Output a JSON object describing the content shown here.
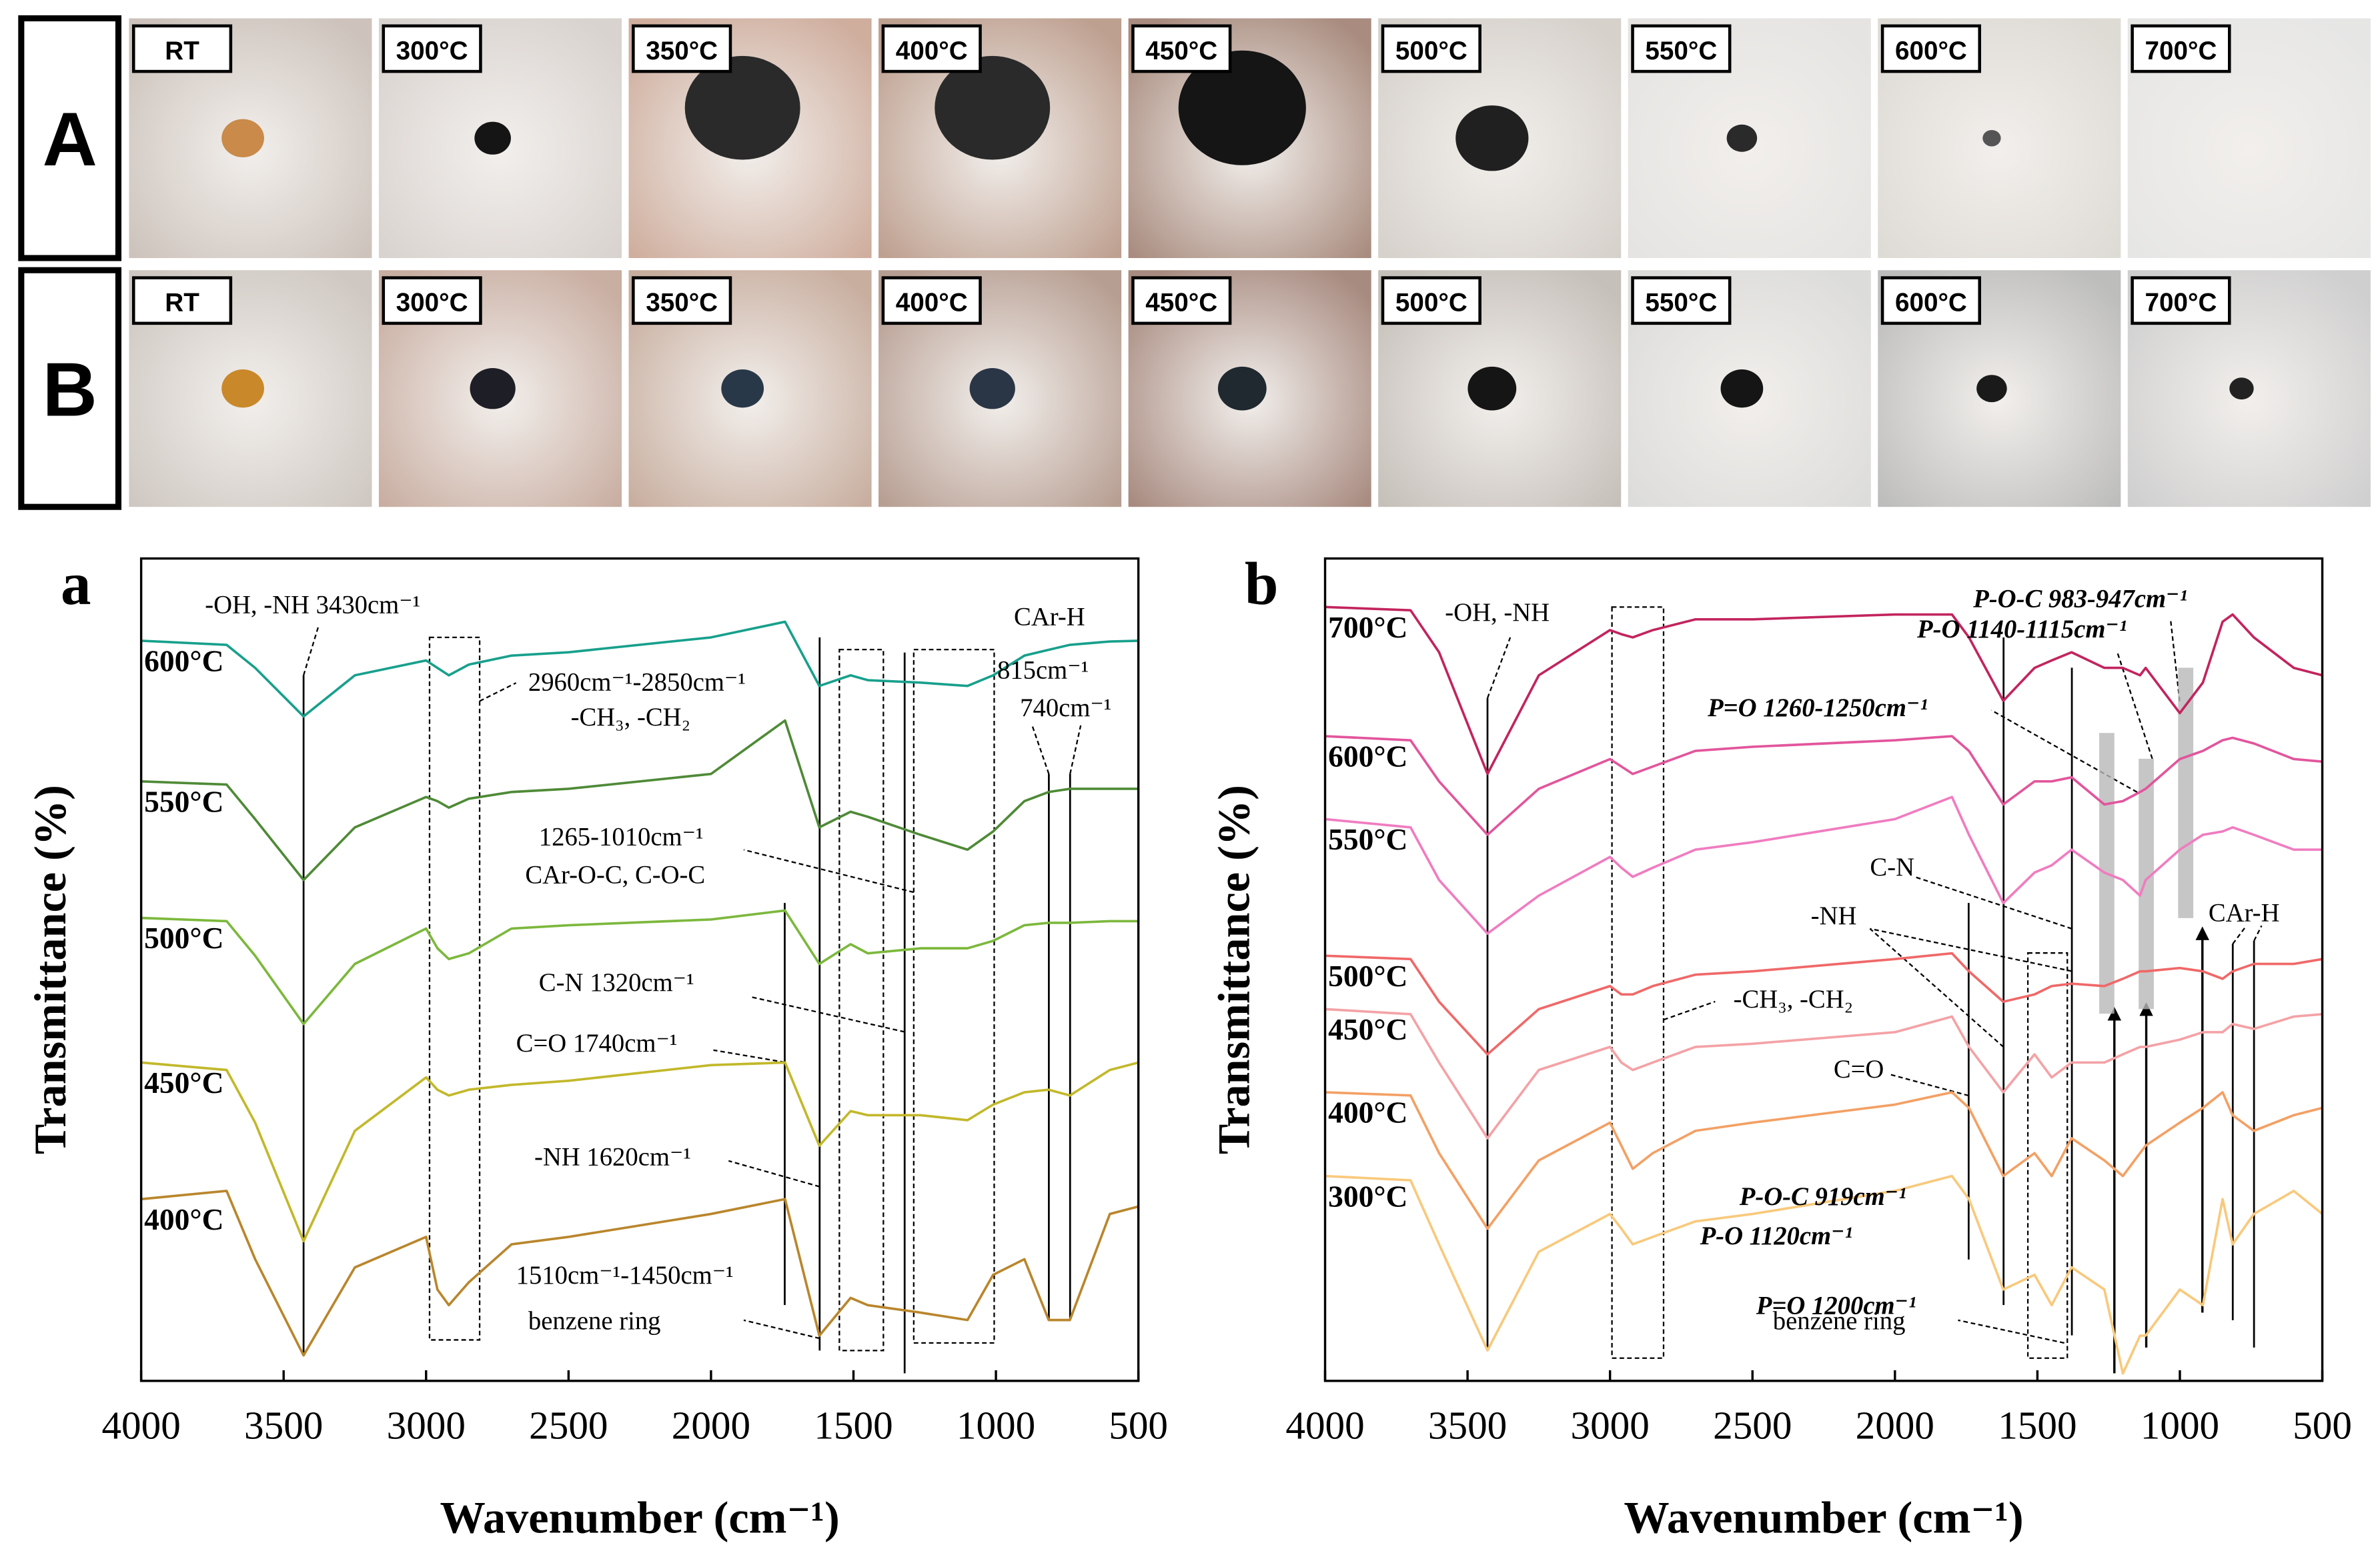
{
  "photo_panel": {
    "rows": [
      {
        "label": "A",
        "photos": [
          "RT",
          "300°C",
          "350°C",
          "400°C",
          "450°C",
          "500°C",
          "550°C",
          "600°C",
          "700°C"
        ]
      },
      {
        "label": "B",
        "photos": [
          "RT",
          "300°C",
          "350°C",
          "400°C",
          "450°C",
          "500°C",
          "550°C",
          "600°C",
          "700°C"
        ]
      }
    ]
  },
  "chart_data": [
    {
      "type": "line",
      "title": "a",
      "x_label": "Wavenumber (cm⁻¹)",
      "y_label": "Transmittance (%)",
      "xlim": [
        4000,
        500
      ],
      "xticks": [
        4000,
        3500,
        3000,
        2500,
        2000,
        1500,
        1000,
        500
      ],
      "ylim": [
        0,
        100
      ],
      "x": [
        4000,
        3700,
        3600,
        3430,
        3250,
        3000,
        2960,
        2920,
        2850,
        2700,
        2500,
        2000,
        1740,
        1620,
        1510,
        1450,
        1265,
        1100,
        1010,
        900,
        815,
        740,
        600,
        500
      ],
      "series": [
        {
          "name": "600°C",
          "color": "#17a08c",
          "values": [
            90.0,
            89.5,
            86.7,
            80.8,
            85.8,
            87.6,
            86.7,
            85.8,
            87.1,
            88.2,
            88.6,
            90.4,
            92.3,
            84.5,
            85.8,
            85.2,
            84.9,
            84.5,
            85.8,
            88.2,
            88.9,
            89.5,
            89.9,
            90.0
          ]
        },
        {
          "name": "550°C",
          "color": "#4e8a36",
          "values": [
            72.9,
            72.5,
            68.3,
            60.9,
            67.3,
            71.0,
            70.5,
            69.7,
            70.8,
            71.6,
            72.0,
            73.8,
            80.3,
            67.3,
            69.2,
            68.6,
            66.4,
            64.6,
            66.8,
            70.5,
            71.6,
            72.0,
            72.0,
            72.0
          ]
        },
        {
          "name": "500°C",
          "color": "#7cb83c",
          "values": [
            56.3,
            55.9,
            51.7,
            43.4,
            50.7,
            55.0,
            52.6,
            51.3,
            52.0,
            55.0,
            55.4,
            56.1,
            57.2,
            50.7,
            53.1,
            52.0,
            52.6,
            52.6,
            53.5,
            55.4,
            55.7,
            55.7,
            55.9,
            55.9
          ]
        },
        {
          "name": "450°C",
          "color": "#c2b82a",
          "values": [
            38.7,
            37.8,
            31.4,
            17.0,
            30.4,
            36.9,
            35.4,
            34.7,
            35.4,
            36.0,
            36.5,
            38.4,
            38.7,
            28.6,
            32.8,
            32.3,
            32.3,
            31.7,
            33.6,
            35.1,
            35.4,
            34.7,
            37.8,
            38.7
          ]
        },
        {
          "name": "400°C",
          "color": "#b9862c",
          "values": [
            22.1,
            23.1,
            14.8,
            3.1,
            13.8,
            17.5,
            11.1,
            9.2,
            12.0,
            16.6,
            17.5,
            20.3,
            22.1,
            5.5,
            10.1,
            9.2,
            8.3,
            7.4,
            12.9,
            14.8,
            7.4,
            7.4,
            20.3,
            21.2
          ]
        }
      ],
      "annotations": [
        "-OH, -NH  3430cm⁻¹",
        "CAr-H",
        "2960cm⁻¹-2850cm⁻¹",
        "-CH₃, -CH₂",
        "815cm⁻¹",
        "740cm⁻¹",
        "1265-1010cm⁻¹",
        "CAr-O-C, C-O-C",
        "C-N 1320cm⁻¹",
        "C=O 1740cm⁻¹",
        "-NH  1620cm⁻¹",
        "1510cm⁻¹-1450cm⁻¹",
        "benzene ring"
      ]
    },
    {
      "type": "line",
      "title": "b",
      "x_label": "Wavenumber (cm⁻¹)",
      "y_label": "Transmittance (%)",
      "xlim": [
        4000,
        500
      ],
      "xticks": [
        4000,
        3500,
        3000,
        2500,
        2000,
        1500,
        1000,
        500
      ],
      "ylim": [
        0,
        100
      ],
      "x": [
        4000,
        3700,
        3600,
        3430,
        3250,
        3000,
        2960,
        2920,
        2850,
        2700,
        2500,
        2000,
        1800,
        1740,
        1620,
        1510,
        1450,
        1380,
        1265,
        1200,
        1140,
        1120,
        1000,
        919,
        850,
        815,
        740,
        600,
        500
      ],
      "series": [
        {
          "name": "700°C",
          "color": "#c2245e",
          "values": [
            94.1,
            93.7,
            88.6,
            73.8,
            85.8,
            91.3,
            90.8,
            90.4,
            91.3,
            92.6,
            92.6,
            93.2,
            93.2,
            90.4,
            82.7,
            86.7,
            87.6,
            88.6,
            86.7,
            86.7,
            85.8,
            86.7,
            81.2,
            84.9,
            92.3,
            93.2,
            90.4,
            86.7,
            85.8
          ]
        },
        {
          "name": "600°C",
          "color": "#e2559c",
          "values": [
            78.4,
            77.9,
            72.9,
            66.4,
            72.0,
            75.6,
            74.7,
            73.8,
            74.7,
            76.6,
            77.1,
            77.9,
            78.4,
            76.6,
            70.1,
            72.9,
            72.9,
            73.4,
            70.1,
            70.5,
            71.6,
            72.0,
            75.6,
            76.6,
            77.9,
            78.2,
            77.5,
            75.6,
            75.3
          ]
        },
        {
          "name": "550°C",
          "color": "#f07cc0",
          "values": [
            68.3,
            67.3,
            60.9,
            54.4,
            59.0,
            63.7,
            62.4,
            61.3,
            62.4,
            64.6,
            65.5,
            68.3,
            71.0,
            66.4,
            58.1,
            61.8,
            62.7,
            64.6,
            61.8,
            60.9,
            59.0,
            60.9,
            64.6,
            66.4,
            66.8,
            67.3,
            66.4,
            64.6,
            64.6
          ]
        },
        {
          "name": "500°C",
          "color": "#f06868",
          "values": [
            51.7,
            51.3,
            46.1,
            39.7,
            45.2,
            48.0,
            47.0,
            47.0,
            48.0,
            49.4,
            49.8,
            51.3,
            52.0,
            49.8,
            46.1,
            47.0,
            48.0,
            48.3,
            48.0,
            48.9,
            49.8,
            49.8,
            50.2,
            49.8,
            48.9,
            49.8,
            50.7,
            50.7,
            51.3
          ]
        },
        {
          "name": "450°C",
          "color": "#f4a2a6",
          "values": [
            45.2,
            44.6,
            38.7,
            29.5,
            37.8,
            40.6,
            38.7,
            37.8,
            38.7,
            40.6,
            41.0,
            42.4,
            44.3,
            40.6,
            35.1,
            39.7,
            36.9,
            38.7,
            38.7,
            39.7,
            40.6,
            40.6,
            41.5,
            42.4,
            42.4,
            43.4,
            42.8,
            44.3,
            44.6
          ]
        },
        {
          "name": "400°C",
          "color": "#f3a064",
          "values": [
            35.1,
            34.7,
            27.7,
            18.5,
            26.8,
            31.4,
            28.6,
            25.8,
            27.7,
            30.4,
            31.4,
            33.6,
            35.1,
            33.2,
            24.9,
            27.7,
            24.9,
            29.5,
            26.8,
            24.9,
            27.7,
            28.6,
            31.4,
            33.2,
            35.1,
            32.3,
            30.4,
            32.3,
            33.2
          ]
        },
        {
          "name": "300°C",
          "color": "#f8c97c",
          "values": [
            24.9,
            24.4,
            16.6,
            3.7,
            15.7,
            20.3,
            18.5,
            16.6,
            17.5,
            19.4,
            20.3,
            23.1,
            24.9,
            22.1,
            11.1,
            12.9,
            9.2,
            13.8,
            11.1,
            0.9,
            5.5,
            5.5,
            11.1,
            9.2,
            22.1,
            16.6,
            20.3,
            23.1,
            20.3
          ]
        }
      ],
      "annotations": [
        "-OH, -NH",
        "P-O-C 983-947cm⁻¹",
        "P-O 1140-1115cm⁻¹",
        "P=O 1260-1250cm⁻¹",
        "C-N",
        "-NH",
        "CAr-H",
        "-CH₃, -CH₂",
        "C=O",
        "P-O-C 919cm⁻¹",
        "P-O 1120cm⁻¹",
        "P=O 1200cm⁻¹",
        "benzene ring"
      ]
    }
  ]
}
